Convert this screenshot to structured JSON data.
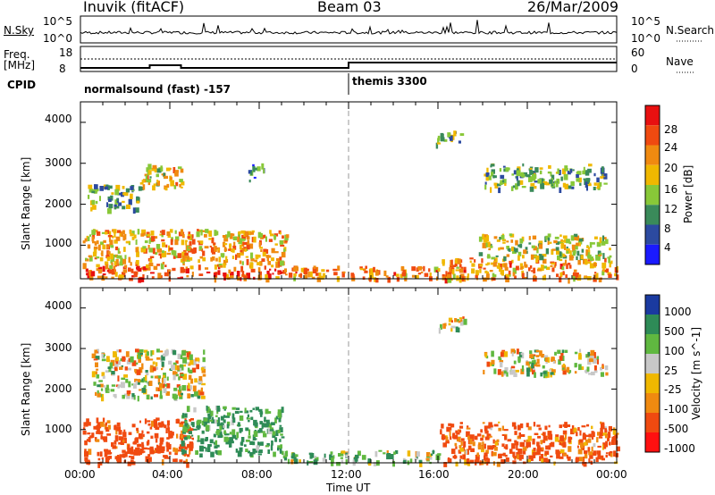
{
  "header": {
    "station": "Inuvik (fitACF)",
    "beam": "Beam 03",
    "date": "26/Mar/2009"
  },
  "top_panel": {
    "left_label": "N.Sky",
    "left_ticks": [
      "10^5",
      "10^0"
    ],
    "right_label": "N.Search",
    "right_ticks": [
      "10^5",
      "10^0"
    ]
  },
  "freq_panel": {
    "left_label_line1": "Freq.",
    "left_label_line2": "[MHz]",
    "left_ticks": [
      "18",
      "8"
    ],
    "right_label": "Nave",
    "right_ticks": [
      "60",
      "0"
    ]
  },
  "cpid_panel": {
    "label": "CPID",
    "segments": [
      {
        "text": "normalsound (fast) -157",
        "start_hour": 0
      },
      {
        "text": "themis 3300",
        "start_hour": 12
      }
    ]
  },
  "colors": {
    "power_scale": [
      "#1a1aff",
      "#2c4aa0",
      "#3a8a5a",
      "#88c838",
      "#f0b800",
      "#f08a10",
      "#f04a10",
      "#e81010"
    ],
    "velocity_scale": [
      "#ff1010",
      "#f04a10",
      "#f08a10",
      "#f0b800",
      "#c8c8c8",
      "#60b840",
      "#2e8b57",
      "#1a3aa0"
    ],
    "ground_scatter": "#c8c8c8",
    "divider": "#999999"
  },
  "chart_data": [
    {
      "type": "heatmap",
      "title": "",
      "xlabel": "Time UT",
      "ylabel": "Slant Range [km]",
      "colorbar_label": "Power [dB]",
      "colorbar_ticks": [
        "28",
        "24",
        "20",
        "16",
        "12",
        "8",
        "4"
      ],
      "xlim_hours": [
        0,
        24
      ],
      "ylim_km": [
        180,
        4500
      ],
      "yticks": [
        "4000",
        "3000",
        "2000",
        "1000"
      ],
      "regions": [
        {
          "t0": 0.2,
          "t1": 9.0,
          "r0": 200,
          "r1": 500,
          "power_db": 26
        },
        {
          "t0": 0.1,
          "t1": 9.2,
          "r0": 500,
          "r1": 1400,
          "power_db": 20
        },
        {
          "t0": 0.3,
          "t1": 2.5,
          "r0": 1900,
          "r1": 2500,
          "power_db": 12
        },
        {
          "t0": 2.5,
          "t1": 4.5,
          "r0": 2400,
          "r1": 3000,
          "power_db": 18
        },
        {
          "t0": 7.5,
          "t1": 8.2,
          "r0": 2600,
          "r1": 3000,
          "power_db": 10
        },
        {
          "t0": 9.0,
          "t1": 16.0,
          "r0": 200,
          "r1": 500,
          "power_db": 22
        },
        {
          "t0": 15.8,
          "t1": 17.2,
          "r0": 3500,
          "r1": 3800,
          "power_db": 12
        },
        {
          "t0": 16.0,
          "t1": 24.0,
          "r0": 200,
          "r1": 700,
          "power_db": 22
        },
        {
          "t0": 17.8,
          "t1": 23.7,
          "r0": 700,
          "r1": 1300,
          "power_db": 16
        },
        {
          "t0": 18.0,
          "t1": 23.5,
          "r0": 2400,
          "r1": 3000,
          "power_db": 12
        }
      ]
    },
    {
      "type": "heatmap",
      "title": "",
      "xlabel": "Time UT",
      "ylabel": "Slant Range [km]",
      "colorbar_label": "Velocity [m s^-1]",
      "colorbar_ticks": [
        "1000",
        "500",
        "100",
        "25",
        "-25",
        "-100",
        "-500",
        "-1000"
      ],
      "xlim_hours": [
        0,
        24
      ],
      "ylim_km": [
        180,
        4500
      ],
      "yticks": [
        "4000",
        "3000",
        "2000",
        "1000"
      ],
      "xticks": [
        "00:00",
        "04:00",
        "08:00",
        "12:00",
        "16:00",
        "20:00",
        "00:00"
      ],
      "regions": [
        {
          "t0": 0.1,
          "t1": 5.0,
          "r0": 200,
          "r1": 1300,
          "velocity": -200
        },
        {
          "t0": 4.5,
          "t1": 9.0,
          "r0": 400,
          "r1": 1600,
          "velocity": 150
        },
        {
          "t0": 0.5,
          "t1": 5.5,
          "r0": 1800,
          "r1": 3000,
          "velocity": 0
        },
        {
          "t0": 9.0,
          "t1": 16.0,
          "r0": 200,
          "r1": 500,
          "velocity": 60
        },
        {
          "t0": 15.8,
          "t1": 17.2,
          "r0": 3500,
          "r1": 3800,
          "velocity": 0
        },
        {
          "t0": 16.0,
          "t1": 24.0,
          "r0": 200,
          "r1": 1200,
          "velocity": -150
        },
        {
          "t0": 18.0,
          "t1": 23.5,
          "r0": 2400,
          "r1": 3000,
          "velocity": 0
        }
      ]
    }
  ]
}
